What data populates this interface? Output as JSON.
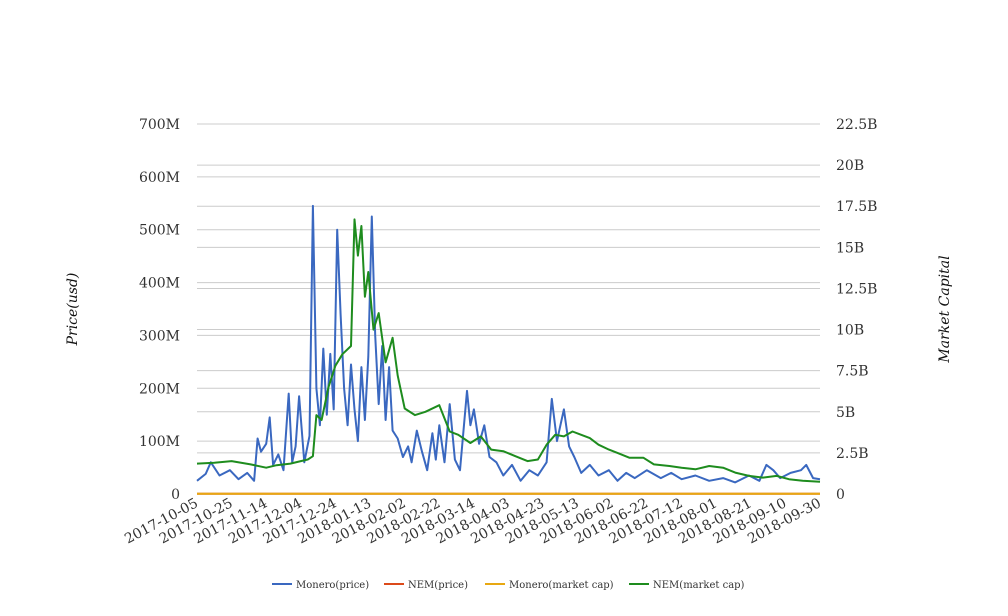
{
  "chart_data": {
    "type": "line",
    "title": "",
    "ylabel": "Price(usd)",
    "y2label": "Market Capital",
    "x_ticks": [
      "2017-10-05",
      "2017-10-25",
      "2017-11-14",
      "2017-12-04",
      "2017-12-24",
      "2018-01-13",
      "2018-02-02",
      "2018-02-22",
      "2018-03-14",
      "2018-04-03",
      "2018-04-23",
      "2018-05-13",
      "2018-06-02",
      "2018-06-22",
      "2018-07-12",
      "2018-08-01",
      "2018-08-21",
      "2018-09-10",
      "2018-09-30"
    ],
    "xlim": [
      "2017-10-05",
      "2018-09-30"
    ],
    "left_axis": {
      "ylim": [
        0,
        700000000
      ],
      "ticks": [
        "0",
        "100M",
        "200M",
        "300M",
        "400M",
        "500M",
        "600M",
        "700M"
      ]
    },
    "right_axis": {
      "ylim": [
        0,
        22500000000
      ],
      "ticks": [
        "0",
        "2.5B",
        "5B",
        "7.5B",
        "10B",
        "12.5B",
        "15B",
        "17.5B",
        "20B",
        "22.5B"
      ]
    },
    "legend_position": "bottom",
    "grid": true,
    "series": [
      {
        "name": "Monero(price)",
        "axis": "left",
        "color": "#3a68c0",
        "points": [
          [
            "2017-10-05",
            25000000
          ],
          [
            "2017-10-10",
            38000000
          ],
          [
            "2017-10-13",
            60000000
          ],
          [
            "2017-10-18",
            35000000
          ],
          [
            "2017-10-24",
            45000000
          ],
          [
            "2017-10-29",
            28000000
          ],
          [
            "2017-11-03",
            40000000
          ],
          [
            "2017-11-07",
            25000000
          ],
          [
            "2017-11-09",
            105000000
          ],
          [
            "2017-11-11",
            80000000
          ],
          [
            "2017-11-14",
            95000000
          ],
          [
            "2017-11-16",
            145000000
          ],
          [
            "2017-11-18",
            55000000
          ],
          [
            "2017-11-21",
            75000000
          ],
          [
            "2017-11-24",
            45000000
          ],
          [
            "2017-11-27",
            190000000
          ],
          [
            "2017-11-29",
            60000000
          ],
          [
            "2017-12-01",
            90000000
          ],
          [
            "2017-12-03",
            185000000
          ],
          [
            "2017-12-06",
            60000000
          ],
          [
            "2017-12-09",
            110000000
          ],
          [
            "2017-12-11",
            545000000
          ],
          [
            "2017-12-13",
            200000000
          ],
          [
            "2017-12-15",
            130000000
          ],
          [
            "2017-12-17",
            275000000
          ],
          [
            "2017-12-19",
            150000000
          ],
          [
            "2017-12-21",
            265000000
          ],
          [
            "2017-12-23",
            160000000
          ],
          [
            "2017-12-25",
            500000000
          ],
          [
            "2017-12-27",
            340000000
          ],
          [
            "2017-12-29",
            200000000
          ],
          [
            "2017-12-31",
            130000000
          ],
          [
            "2018-01-02",
            245000000
          ],
          [
            "2018-01-04",
            160000000
          ],
          [
            "2018-01-06",
            100000000
          ],
          [
            "2018-01-08",
            240000000
          ],
          [
            "2018-01-10",
            140000000
          ],
          [
            "2018-01-12",
            260000000
          ],
          [
            "2018-01-14",
            525000000
          ],
          [
            "2018-01-16",
            300000000
          ],
          [
            "2018-01-18",
            170000000
          ],
          [
            "2018-01-20",
            280000000
          ],
          [
            "2018-01-22",
            140000000
          ],
          [
            "2018-01-24",
            240000000
          ],
          [
            "2018-01-26",
            120000000
          ],
          [
            "2018-01-29",
            105000000
          ],
          [
            "2018-02-01",
            70000000
          ],
          [
            "2018-02-04",
            90000000
          ],
          [
            "2018-02-06",
            60000000
          ],
          [
            "2018-02-09",
            120000000
          ],
          [
            "2018-02-12",
            80000000
          ],
          [
            "2018-02-15",
            45000000
          ],
          [
            "2018-02-18",
            115000000
          ],
          [
            "2018-02-20",
            65000000
          ],
          [
            "2018-02-22",
            130000000
          ],
          [
            "2018-02-25",
            60000000
          ],
          [
            "2018-02-28",
            170000000
          ],
          [
            "2018-03-03",
            65000000
          ],
          [
            "2018-03-06",
            45000000
          ],
          [
            "2018-03-10",
            195000000
          ],
          [
            "2018-03-12",
            130000000
          ],
          [
            "2018-03-14",
            160000000
          ],
          [
            "2018-03-17",
            95000000
          ],
          [
            "2018-03-20",
            130000000
          ],
          [
            "2018-03-23",
            70000000
          ],
          [
            "2018-03-27",
            60000000
          ],
          [
            "2018-03-31",
            35000000
          ],
          [
            "2018-04-05",
            55000000
          ],
          [
            "2018-04-10",
            25000000
          ],
          [
            "2018-04-15",
            45000000
          ],
          [
            "2018-04-20",
            35000000
          ],
          [
            "2018-04-25",
            60000000
          ],
          [
            "2018-04-28",
            180000000
          ],
          [
            "2018-05-01",
            100000000
          ],
          [
            "2018-05-03",
            130000000
          ],
          [
            "2018-05-05",
            160000000
          ],
          [
            "2018-05-08",
            90000000
          ],
          [
            "2018-05-11",
            70000000
          ],
          [
            "2018-05-15",
            40000000
          ],
          [
            "2018-05-20",
            55000000
          ],
          [
            "2018-05-25",
            35000000
          ],
          [
            "2018-05-31",
            45000000
          ],
          [
            "2018-06-05",
            25000000
          ],
          [
            "2018-06-10",
            40000000
          ],
          [
            "2018-06-15",
            30000000
          ],
          [
            "2018-06-22",
            45000000
          ],
          [
            "2018-06-30",
            30000000
          ],
          [
            "2018-07-06",
            40000000
          ],
          [
            "2018-07-12",
            28000000
          ],
          [
            "2018-07-20",
            35000000
          ],
          [
            "2018-07-28",
            25000000
          ],
          [
            "2018-08-05",
            30000000
          ],
          [
            "2018-08-12",
            22000000
          ],
          [
            "2018-08-20",
            35000000
          ],
          [
            "2018-08-26",
            25000000
          ],
          [
            "2018-08-30",
            55000000
          ],
          [
            "2018-09-03",
            45000000
          ],
          [
            "2018-09-07",
            30000000
          ],
          [
            "2018-09-13",
            40000000
          ],
          [
            "2018-09-19",
            45000000
          ],
          [
            "2018-09-22",
            55000000
          ],
          [
            "2018-09-26",
            30000000
          ],
          [
            "2018-09-30",
            28000000
          ]
        ]
      },
      {
        "name": "NEM(price)",
        "axis": "left",
        "color": "#dc4a1a",
        "points": [
          [
            "2017-10-05",
            300000
          ],
          [
            "2018-09-30",
            300000
          ]
        ]
      },
      {
        "name": "Monero(market cap)",
        "axis": "left",
        "color": "#e8a812",
        "points": [
          [
            "2017-10-05",
            500000
          ],
          [
            "2018-09-30",
            500000
          ]
        ]
      },
      {
        "name": "NEM(market cap)",
        "axis": "right",
        "color": "#1e8c1e",
        "points": [
          [
            "2017-10-05",
            1850000000
          ],
          [
            "2017-10-15",
            1900000000
          ],
          [
            "2017-10-25",
            2000000000
          ],
          [
            "2017-11-05",
            1800000000
          ],
          [
            "2017-11-14",
            1600000000
          ],
          [
            "2017-11-20",
            1750000000
          ],
          [
            "2017-11-28",
            1850000000
          ],
          [
            "2017-12-04",
            2000000000
          ],
          [
            "2017-12-08",
            2100000000
          ],
          [
            "2017-12-11",
            2300000000
          ],
          [
            "2017-12-13",
            4800000000
          ],
          [
            "2017-12-16",
            4500000000
          ],
          [
            "2017-12-20",
            6500000000
          ],
          [
            "2017-12-24",
            7800000000
          ],
          [
            "2017-12-28",
            8500000000
          ],
          [
            "2018-01-02",
            9000000000
          ],
          [
            "2018-01-04",
            16700000000
          ],
          [
            "2018-01-06",
            14500000000
          ],
          [
            "2018-01-08",
            16300000000
          ],
          [
            "2018-01-10",
            12000000000
          ],
          [
            "2018-01-12",
            13500000000
          ],
          [
            "2018-01-15",
            10000000000
          ],
          [
            "2018-01-18",
            11000000000
          ],
          [
            "2018-01-22",
            8000000000
          ],
          [
            "2018-01-26",
            9500000000
          ],
          [
            "2018-01-29",
            7200000000
          ],
          [
            "2018-02-02",
            5200000000
          ],
          [
            "2018-02-08",
            4800000000
          ],
          [
            "2018-02-14",
            5000000000
          ],
          [
            "2018-02-22",
            5400000000
          ],
          [
            "2018-02-28",
            3800000000
          ],
          [
            "2018-03-05",
            3600000000
          ],
          [
            "2018-03-12",
            3100000000
          ],
          [
            "2018-03-18",
            3500000000
          ],
          [
            "2018-03-24",
            2700000000
          ],
          [
            "2018-03-31",
            2600000000
          ],
          [
            "2018-04-07",
            2300000000
          ],
          [
            "2018-04-14",
            2000000000
          ],
          [
            "2018-04-20",
            2100000000
          ],
          [
            "2018-04-25",
            3000000000
          ],
          [
            "2018-04-30",
            3600000000
          ],
          [
            "2018-05-05",
            3500000000
          ],
          [
            "2018-05-10",
            3800000000
          ],
          [
            "2018-05-15",
            3600000000
          ],
          [
            "2018-05-20",
            3400000000
          ],
          [
            "2018-05-25",
            3000000000
          ],
          [
            "2018-05-31",
            2700000000
          ],
          [
            "2018-06-05",
            2500000000
          ],
          [
            "2018-06-12",
            2200000000
          ],
          [
            "2018-06-20",
            2200000000
          ],
          [
            "2018-06-26",
            1800000000
          ],
          [
            "2018-07-05",
            1700000000
          ],
          [
            "2018-07-12",
            1600000000
          ],
          [
            "2018-07-20",
            1500000000
          ],
          [
            "2018-07-28",
            1700000000
          ],
          [
            "2018-08-05",
            1600000000
          ],
          [
            "2018-08-12",
            1300000000
          ],
          [
            "2018-08-20",
            1100000000
          ],
          [
            "2018-08-28",
            1000000000
          ],
          [
            "2018-09-05",
            1100000000
          ],
          [
            "2018-09-12",
            900000000
          ],
          [
            "2018-09-20",
            800000000
          ],
          [
            "2018-09-30",
            750000000
          ]
        ]
      }
    ]
  }
}
